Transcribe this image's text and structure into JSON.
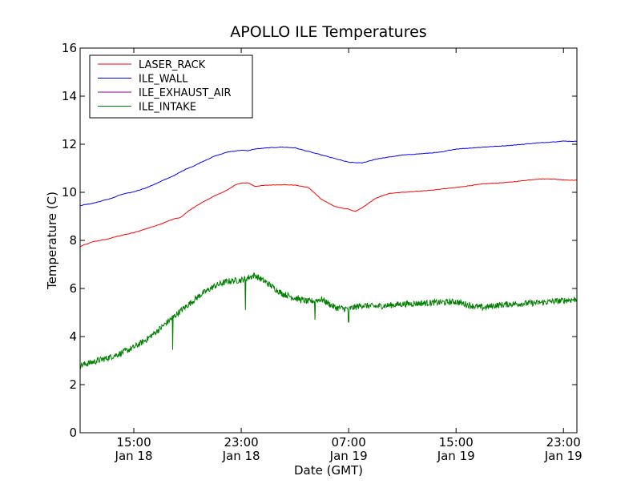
{
  "chart_data": {
    "type": "line",
    "title": "APOLLO ILE Temperatures",
    "xlabel": "Date (GMT)",
    "ylabel": "Temperature (C)",
    "x_unit": "hours from Jan 18 15:00 GMT",
    "xlim": [
      -4,
      33
    ],
    "ylim": [
      0,
      16
    ],
    "yticks": [
      "0",
      "2",
      "4",
      "6",
      "8",
      "10",
      "12",
      "14",
      "16"
    ],
    "xticks": [
      {
        "x": 0,
        "line1": "15:00",
        "line2": "Jan 18"
      },
      {
        "x": 8,
        "line1": "23:00",
        "line2": "Jan 18"
      },
      {
        "x": 16,
        "line1": "07:00",
        "line2": "Jan 19"
      },
      {
        "x": 24,
        "line1": "15:00",
        "line2": "Jan 19"
      },
      {
        "x": 32,
        "line1": "23:00",
        "line2": "Jan 19"
      }
    ],
    "grid": false,
    "legend_position": "upper-left",
    "series": [
      {
        "name": "LASER_RACK",
        "color": "#ff0000",
        "x": [
          -4,
          -3,
          -2,
          -1,
          0,
          1,
          2,
          3,
          3.5,
          4,
          5,
          6,
          7,
          7.5,
          8,
          8.5,
          9,
          10,
          11,
          12,
          13,
          14,
          15,
          16,
          16.5,
          17,
          18,
          19,
          20,
          22,
          24,
          26,
          28,
          30,
          31,
          32,
          33
        ],
        "y": [
          7.75,
          7.95,
          8.05,
          8.2,
          8.32,
          8.5,
          8.68,
          8.9,
          8.95,
          9.2,
          9.55,
          9.85,
          10.1,
          10.3,
          10.38,
          10.4,
          10.25,
          10.3,
          10.32,
          10.3,
          10.2,
          9.7,
          9.4,
          9.3,
          9.2,
          9.35,
          9.75,
          9.95,
          10.0,
          10.08,
          10.2,
          10.35,
          10.42,
          10.55,
          10.56,
          10.52,
          10.5
        ]
      },
      {
        "name": "ILE_WALL",
        "color": "#0000ff",
        "x": [
          -4,
          -3,
          -2,
          -1.5,
          -1,
          0,
          1,
          2,
          3,
          4,
          4.5,
          5,
          6,
          7,
          8,
          8.5,
          9,
          10,
          11,
          12,
          13,
          14,
          15,
          16,
          17,
          18,
          20,
          22,
          23,
          23.5,
          24,
          26,
          28,
          30,
          32,
          33
        ],
        "y": [
          9.45,
          9.55,
          9.7,
          9.78,
          9.9,
          10.02,
          10.2,
          10.45,
          10.7,
          11.0,
          11.1,
          11.25,
          11.5,
          11.68,
          11.75,
          11.73,
          11.8,
          11.85,
          11.88,
          11.85,
          11.7,
          11.55,
          11.4,
          11.25,
          11.22,
          11.38,
          11.55,
          11.63,
          11.68,
          11.75,
          11.8,
          11.88,
          11.95,
          12.05,
          12.13,
          12.12
        ]
      },
      {
        "name": "ILE_EXHAUST_AIR",
        "color": "#7f007f",
        "x": [],
        "y": []
      },
      {
        "name": "ILE_INTAKE",
        "color": "#007f00",
        "x": [
          -4,
          -3,
          -2,
          -1,
          0,
          1,
          2,
          2.5,
          3,
          4,
          5,
          6,
          7,
          8,
          9,
          10,
          11,
          12,
          13,
          14,
          15,
          16,
          17,
          18,
          20,
          22,
          24,
          25,
          26,
          27,
          28,
          30,
          32,
          33
        ],
        "y": [
          2.8,
          2.95,
          3.1,
          3.3,
          3.55,
          3.9,
          4.35,
          4.6,
          4.85,
          5.3,
          5.75,
          6.1,
          6.3,
          6.35,
          6.55,
          6.2,
          5.8,
          5.6,
          5.45,
          5.55,
          5.2,
          5.15,
          5.3,
          5.25,
          5.35,
          5.4,
          5.45,
          5.3,
          5.2,
          5.3,
          5.35,
          5.4,
          5.5,
          5.55
        ],
        "noise": 0.13,
        "spikes": [
          {
            "x": 2.9,
            "y": 3.45
          },
          {
            "x": 8.3,
            "y": 5.1
          },
          {
            "x": 13.5,
            "y": 4.7
          },
          {
            "x": 16.0,
            "y": 4.6
          }
        ]
      }
    ]
  }
}
